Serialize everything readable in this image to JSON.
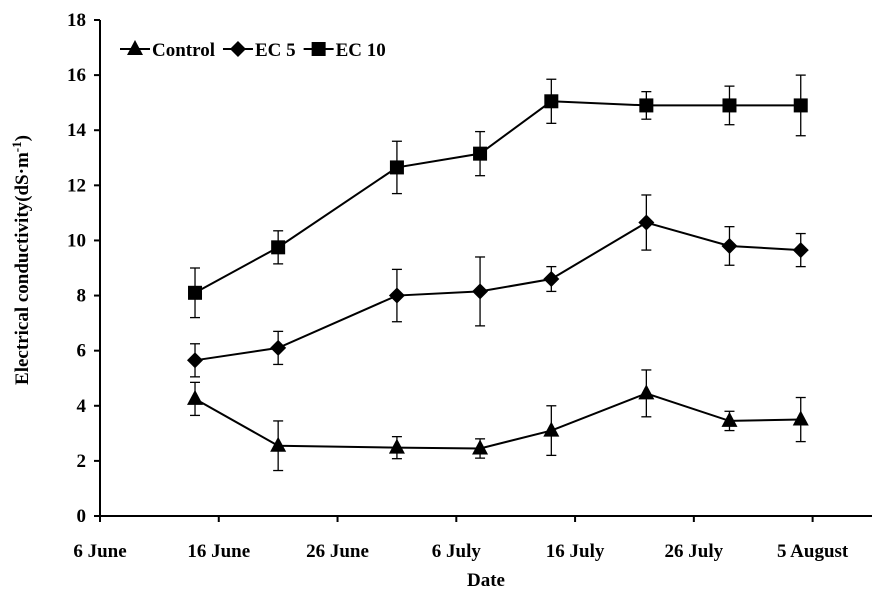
{
  "chart_data": {
    "type": "line",
    "title": "",
    "xlabel": "Date",
    "ylabel": "Electrical conductivity(dS·m",
    "ylabel_superscript": "-1",
    "ylabel_suffix": ")",
    "ylim": [
      0,
      18
    ],
    "yticks": [
      0,
      2,
      4,
      6,
      8,
      10,
      12,
      14,
      16,
      18
    ],
    "xlim": [
      "2014-06-06",
      "2014-08-10"
    ],
    "xticks": [
      {
        "date": "2014-06-06",
        "label": "6 June"
      },
      {
        "date": "2014-06-16",
        "label": "16 June"
      },
      {
        "date": "2014-06-26",
        "label": "26 June"
      },
      {
        "date": "2014-07-06",
        "label": "6 July"
      },
      {
        "date": "2014-07-16",
        "label": "16 July"
      },
      {
        "date": "2014-07-26",
        "label": "26 July"
      },
      {
        "date": "2014-08-05",
        "label": "5 August"
      }
    ],
    "grid": false,
    "legend_position": "top-left",
    "x": [
      "2014-06-14",
      "2014-06-21",
      "2014-07-01",
      "2014-07-08",
      "2014-07-14",
      "2014-07-22",
      "2014-07-29",
      "2014-08-04"
    ],
    "series": [
      {
        "name": "Control",
        "marker": "triangle",
        "values": [
          4.25,
          2.55,
          2.48,
          2.45,
          3.1,
          4.45,
          3.45,
          3.5
        ],
        "errors": [
          0.6,
          0.9,
          0.4,
          0.35,
          0.9,
          0.85,
          0.35,
          0.8
        ]
      },
      {
        "name": "EC 5",
        "marker": "diamond",
        "values": [
          5.65,
          6.1,
          8.0,
          8.15,
          8.6,
          10.65,
          9.8,
          9.65
        ],
        "errors": [
          0.6,
          0.6,
          0.95,
          1.25,
          0.45,
          1.0,
          0.7,
          0.6
        ]
      },
      {
        "name": "EC 10",
        "marker": "square",
        "values": [
          8.1,
          9.75,
          12.65,
          13.15,
          15.05,
          14.9,
          14.9,
          14.9
        ],
        "errors": [
          0.9,
          0.6,
          0.95,
          0.8,
          0.8,
          0.5,
          0.7,
          1.1
        ]
      }
    ],
    "colors": {
      "line": "#000000",
      "marker": "#000000",
      "background": "#ffffff"
    }
  }
}
